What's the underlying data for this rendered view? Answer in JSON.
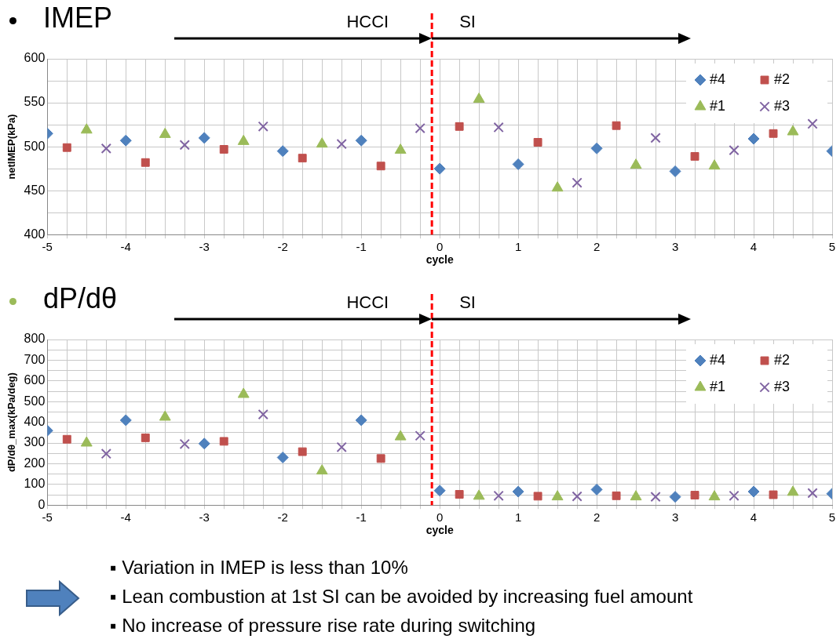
{
  "chart_data": [
    {
      "type": "scatter",
      "title": "IMEP",
      "xlabel": "cycle",
      "ylabel": "netIMEP(kPa)",
      "annotations": [
        "HCCI",
        "SI"
      ],
      "series": [
        {
          "name": "#4",
          "color": "#4f81bd",
          "marker": "diamond",
          "x": [
            -5,
            -4,
            -3,
            -2,
            -1,
            0,
            1,
            2,
            3,
            4,
            5
          ],
          "values": [
            515,
            507,
            510,
            495,
            507,
            475,
            480,
            498,
            472,
            509,
            495
          ]
        },
        {
          "name": "#2",
          "color": "#c0504d",
          "marker": "square",
          "x": [
            -4.75,
            -3.75,
            -2.75,
            -1.75,
            -0.75,
            0.25,
            1.25,
            2.25,
            3.25,
            4.25
          ],
          "values": [
            499,
            482,
            497,
            487,
            478,
            523,
            505,
            524,
            489,
            515
          ]
        },
        {
          "name": "#1",
          "color": "#9bbb59",
          "marker": "triangle",
          "x": [
            -4.5,
            -3.5,
            -2.5,
            -1.5,
            -0.5,
            0.5,
            1.5,
            2.5,
            3.5,
            4.5
          ],
          "values": [
            519,
            514,
            506,
            503,
            496,
            554,
            453,
            479,
            478,
            517
          ]
        },
        {
          "name": "#3",
          "color": "#8064a2",
          "marker": "cross",
          "x": [
            -4.25,
            -3.25,
            -2.25,
            -1.25,
            -0.25,
            0.75,
            1.75,
            2.75,
            3.75,
            4.75
          ],
          "values": [
            498,
            502,
            523,
            503,
            521,
            522,
            459,
            510,
            496,
            526
          ]
        }
      ],
      "xlim": [
        -5,
        5
      ],
      "xticks": [
        -5,
        {
          "value": -4.75,
          "label": null
        },
        {
          "value": -4.5,
          "label": null
        },
        {
          "value": -4.25,
          "label": null
        },
        -4,
        {
          "value": -3.75,
          "label": null
        },
        {
          "value": -3.5,
          "label": null
        },
        {
          "value": -3.25,
          "label": null
        },
        -3,
        {
          "value": -2.75,
          "label": null
        },
        {
          "value": -2.5,
          "label": null
        },
        {
          "value": -2.25,
          "label": null
        },
        -2,
        {
          "value": -1.75,
          "label": null
        },
        {
          "value": -1.5,
          "label": null
        },
        {
          "value": -1.25,
          "label": null
        },
        -1,
        {
          "value": -0.75,
          "label": null
        },
        {
          "value": -0.5,
          "label": null
        },
        {
          "value": -0.25,
          "label": null
        },
        0,
        {
          "value": 0.25,
          "label": null
        },
        {
          "value": 0.5,
          "label": null
        },
        {
          "value": 0.75,
          "label": null
        },
        1,
        {
          "value": 1.25,
          "label": null
        },
        {
          "value": 1.5,
          "label": null
        },
        {
          "value": 1.75,
          "label": null
        },
        2,
        {
          "value": 2.25,
          "label": null
        },
        {
          "value": 2.5,
          "label": null
        },
        {
          "value": 2.75,
          "label": null
        },
        3,
        {
          "value": 3.25,
          "label": null
        },
        {
          "value": 3.5,
          "label": null
        },
        {
          "value": 3.75,
          "label": null
        },
        4,
        {
          "value": 4.25,
          "label": null
        },
        {
          "value": 4.5,
          "label": null
        },
        {
          "value": 4.75,
          "label": null
        },
        5
      ],
      "ylim": [
        400,
        600
      ],
      "yticks": [
        400,
        {
          "value": 425,
          "label": null
        },
        450,
        {
          "value": 475,
          "label": null
        },
        500,
        {
          "value": 525,
          "label": null
        },
        550,
        {
          "value": 575,
          "label": null
        },
        600
      ],
      "grid": true,
      "legend": "top right",
      "ref_lines": [
        {
          "axis": "x",
          "value": -0.1,
          "color": "#ff0000",
          "line_style": "dashed"
        }
      ]
    },
    {
      "type": "scatter",
      "title": "dP/dθ",
      "xlabel": "cycle",
      "ylabel": "dP/dθ_max(kPa/deg)",
      "annotations": [
        "HCCI",
        "SI"
      ],
      "series": [
        {
          "name": "#4",
          "color": "#4f81bd",
          "marker": "diamond",
          "x": [
            -5,
            -4,
            -3,
            -2,
            -1,
            0,
            1,
            2,
            3,
            4,
            5
          ],
          "values": [
            360,
            410,
            297,
            230,
            410,
            70,
            65,
            75,
            40,
            65,
            55
          ]
        },
        {
          "name": "#2",
          "color": "#c0504d",
          "marker": "square",
          "x": [
            -4.75,
            -3.75,
            -2.75,
            -1.75,
            -0.75,
            0.25,
            1.25,
            2.25,
            3.25,
            4.25
          ],
          "values": [
            318,
            325,
            308,
            258,
            225,
            52,
            43,
            45,
            48,
            50
          ]
        },
        {
          "name": "#1",
          "color": "#9bbb59",
          "marker": "triangle",
          "x": [
            -4.5,
            -3.5,
            -2.5,
            -1.5,
            -0.5,
            0.5,
            1.5,
            2.5,
            3.5,
            4.5
          ],
          "values": [
            300,
            425,
            535,
            165,
            330,
            43,
            40,
            40,
            40,
            62
          ]
        },
        {
          "name": "#3",
          "color": "#8064a2",
          "marker": "cross",
          "x": [
            -4.25,
            -3.25,
            -2.25,
            -1.25,
            -0.25,
            0.75,
            1.75,
            2.75,
            3.75,
            4.75
          ],
          "values": [
            248,
            295,
            438,
            280,
            335,
            45,
            42,
            40,
            45,
            58
          ]
        }
      ],
      "xlim": [
        -5,
        5
      ],
      "xticks": [
        -5,
        {
          "value": -4.75,
          "label": null
        },
        {
          "value": -4.5,
          "label": null
        },
        {
          "value": -4.25,
          "label": null
        },
        -4,
        {
          "value": -3.75,
          "label": null
        },
        {
          "value": -3.5,
          "label": null
        },
        {
          "value": -3.25,
          "label": null
        },
        -3,
        {
          "value": -2.75,
          "label": null
        },
        {
          "value": -2.5,
          "label": null
        },
        {
          "value": -2.25,
          "label": null
        },
        -2,
        {
          "value": -1.75,
          "label": null
        },
        {
          "value": -1.5,
          "label": null
        },
        {
          "value": -1.25,
          "label": null
        },
        -1,
        {
          "value": -0.75,
          "label": null
        },
        {
          "value": -0.5,
          "label": null
        },
        {
          "value": -0.25,
          "label": null
        },
        0,
        {
          "value": 0.25,
          "label": null
        },
        {
          "value": 0.5,
          "label": null
        },
        {
          "value": 0.75,
          "label": null
        },
        1,
        {
          "value": 1.25,
          "label": null
        },
        {
          "value": 1.5,
          "label": null
        },
        {
          "value": 1.75,
          "label": null
        },
        2,
        {
          "value": 2.25,
          "label": null
        },
        {
          "value": 2.5,
          "label": null
        },
        {
          "value": 2.75,
          "label": null
        },
        3,
        {
          "value": 3.25,
          "label": null
        },
        {
          "value": 3.5,
          "label": null
        },
        {
          "value": 3.75,
          "label": null
        },
        4,
        {
          "value": 4.25,
          "label": null
        },
        {
          "value": 4.5,
          "label": null
        },
        {
          "value": 4.75,
          "label": null
        },
        5
      ],
      "ylim": [
        0,
        800
      ],
      "yticks": [
        0,
        {
          "value": 50,
          "label": null
        },
        100,
        {
          "value": 150,
          "label": null
        },
        200,
        {
          "value": 250,
          "label": null
        },
        300,
        {
          "value": 350,
          "label": null
        },
        400,
        {
          "value": 450,
          "label": null
        },
        500,
        {
          "value": 550,
          "label": null
        },
        600,
        {
          "value": 650,
          "label": null
        },
        700,
        {
          "value": 750,
          "label": null
        },
        800
      ],
      "grid": true,
      "legend": "top right",
      "ref_lines": [
        {
          "axis": "x",
          "value": -0.1,
          "color": "#ff0000",
          "line_style": "dashed"
        }
      ]
    },
    {
      "type": "other",
      "annotations": [
        "▪ Variation in IMEP is less than 10%",
        "▪ Lean combustion at 1st SI can be avoided by increasing fuel amount",
        "▪ No increase of pressure rise rate during switching"
      ]
    }
  ]
}
